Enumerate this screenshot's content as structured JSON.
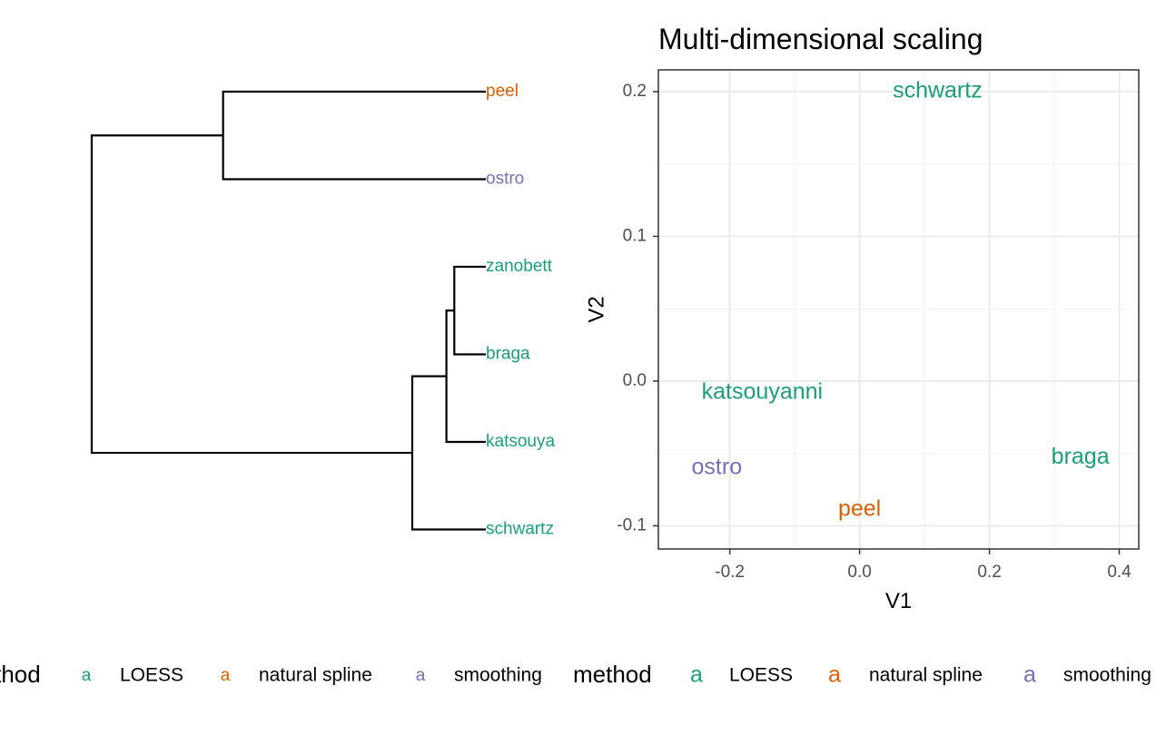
{
  "colors": {
    "LOESS": "#1b9e77",
    "natural spline": "#d95f02",
    "smoothing": "#7570b3",
    "line": "#000000",
    "grid_major": "#ebebeb",
    "grid_minor": "#f2f2f2",
    "panel_border": "#333333"
  },
  "chart_data": [
    {
      "type": "dendrogram",
      "leaves": [
        {
          "label": "peel",
          "method": "natural spline"
        },
        {
          "label": "ostro",
          "method": "smoothing"
        },
        {
          "label": "zanobett",
          "method": "LOESS"
        },
        {
          "label": "braga",
          "method": "LOESS"
        },
        {
          "label": "katsouya",
          "method": "LOESS"
        },
        {
          "label": "schwartz",
          "method": "LOESS"
        }
      ],
      "merges": [
        {
          "left": "zanobett",
          "right": "braga",
          "height": 0.12
        },
        {
          "left": "zanobett+braga",
          "right": "katsouya",
          "height": 0.15
        },
        {
          "left": "zanobett+braga+katsouya",
          "right": "schwartz",
          "height": 0.28
        },
        {
          "left": "peel",
          "right": "ostro",
          "height": 1.0
        },
        {
          "left": "peel+ostro",
          "right": "zanobett+braga+katsouya+schwartz",
          "height": 1.5
        }
      ],
      "legend": {
        "title": "method",
        "items": [
          {
            "symbol": "a",
            "label": "LOESS",
            "method": "LOESS"
          },
          {
            "symbol": "a",
            "label": "natural spline",
            "method": "natural spline"
          },
          {
            "symbol": "a",
            "label": "smoothing",
            "method": "smoothing"
          }
        ]
      }
    },
    {
      "type": "scatter",
      "title": "Multi-dimensional scaling",
      "xlabel": "V1",
      "ylabel": "V2",
      "xlim": [
        -0.31,
        0.43
      ],
      "ylim": [
        -0.116,
        0.215
      ],
      "xticks": [
        -0.2,
        0.0,
        0.2,
        0.4
      ],
      "xtick_labels": [
        "-0.2",
        "0.0",
        "0.2",
        "0.4"
      ],
      "yticks": [
        -0.1,
        0.0,
        0.1,
        0.2
      ],
      "ytick_labels": [
        "-0.1",
        "0.0",
        "0.1",
        "0.2"
      ],
      "grid": true,
      "points": [
        {
          "label": "schwartz",
          "x": 0.12,
          "y": 0.2,
          "method": "LOESS"
        },
        {
          "label": "katsouyanni",
          "x": -0.15,
          "y": -0.008,
          "method": "LOESS"
        },
        {
          "label": "braga",
          "x": 0.34,
          "y": -0.053,
          "method": "LOESS"
        },
        {
          "label": "ostro",
          "x": -0.22,
          "y": -0.06,
          "method": "smoothing"
        },
        {
          "label": "peel",
          "x": 0.0,
          "y": -0.089,
          "method": "natural spline"
        }
      ],
      "legend": {
        "title": "method",
        "items": [
          {
            "symbol": "a",
            "label": "LOESS",
            "method": "LOESS"
          },
          {
            "symbol": "a",
            "label": "natural spline",
            "method": "natural spline"
          },
          {
            "symbol": "a",
            "label": "smoothing",
            "method": "smoothing"
          }
        ]
      }
    }
  ]
}
